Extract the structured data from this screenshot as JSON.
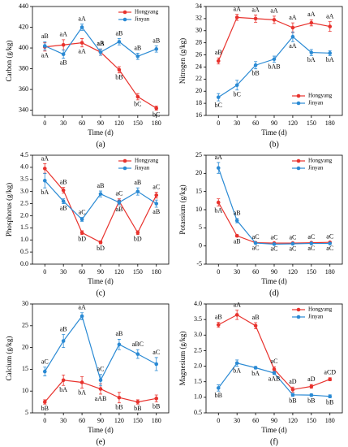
{
  "chart_data": [
    {
      "type": "line",
      "ylabel": "Carbon (g/kg)",
      "xlabel": "Time (d)",
      "caption": "(a)",
      "x": [
        0,
        30,
        60,
        90,
        120,
        150,
        180
      ],
      "xlim": [
        -20,
        200
      ],
      "xticks": [
        0,
        30,
        60,
        90,
        120,
        150,
        180
      ],
      "ylim": [
        335,
        440
      ],
      "yticks": [
        340,
        360,
        380,
        400,
        420,
        440
      ],
      "legend": "upper right",
      "series": [
        {
          "name": "Hongyang",
          "color": "#e8322d",
          "values": [
            401,
            403,
            405,
            396,
            379,
            353,
            342
          ],
          "errors": [
            4,
            5,
            4,
            3,
            3,
            3,
            2
          ],
          "labels": [
            "aA",
            "aA",
            "aA",
            "aA",
            "bB",
            "bC",
            "bC"
          ]
        },
        {
          "name": "Jinyan",
          "color": "#2a8ad4",
          "values": [
            402,
            394,
            420,
            396,
            406,
            392,
            399
          ],
          "errors": [
            4,
            4,
            3,
            3,
            3,
            3,
            3
          ],
          "labels": [
            "aB",
            "aB",
            "aA",
            "aB",
            "aB",
            "aB",
            "aB"
          ]
        }
      ]
    },
    {
      "type": "line",
      "ylabel": "Nitrogen (g/kg)",
      "xlabel": "Time (d)",
      "caption": "(b)",
      "x": [
        0,
        30,
        60,
        90,
        120,
        150,
        180
      ],
      "xlim": [
        -20,
        200
      ],
      "xticks": [
        0,
        30,
        60,
        90,
        120,
        150,
        180
      ],
      "ylim": [
        16,
        34
      ],
      "yticks": [
        16,
        18,
        20,
        22,
        24,
        26,
        28,
        30,
        32,
        34
      ],
      "legend": "lower right",
      "series": [
        {
          "name": "Hongyang",
          "color": "#e8322d",
          "values": [
            25,
            32.2,
            32,
            31.8,
            30.5,
            31.3,
            30.7
          ],
          "errors": [
            0.5,
            0.5,
            0.6,
            0.6,
            0.8,
            0.5,
            0.8
          ],
          "labels": [
            "aB",
            "aA",
            "aA",
            "aA",
            "aA",
            "aA",
            "aA"
          ]
        },
        {
          "name": "Jinyan",
          "color": "#2a8ad4",
          "values": [
            19,
            21,
            24.3,
            25.3,
            29,
            26.4,
            26.3
          ],
          "errors": [
            0.6,
            0.8,
            0.6,
            0.5,
            0.8,
            0.5,
            0.4
          ],
          "labels": [
            "bC",
            "bC",
            "bB",
            "bAB",
            "aA",
            "bA",
            "bA"
          ]
        }
      ]
    },
    {
      "type": "line",
      "ylabel": "Phosphorus (g/kg)",
      "xlabel": "Time (d)",
      "caption": "(c)",
      "x": [
        0,
        30,
        60,
        90,
        120,
        150,
        180
      ],
      "xlim": [
        -20,
        200
      ],
      "xticks": [
        0,
        30,
        60,
        90,
        120,
        150,
        180
      ],
      "ylim": [
        0,
        4.5
      ],
      "yticks": [
        {
          "value": 0,
          "label": "0.0"
        },
        0.5,
        {
          "value": 1,
          "label": "1.0"
        },
        1.5,
        {
          "value": 2,
          "label": "2.0"
        },
        2.5,
        {
          "value": 3,
          "label": "3.0"
        },
        3.5,
        {
          "value": 4,
          "label": "4.0"
        },
        4.5
      ],
      "legend": "upper right",
      "series": [
        {
          "name": "Hongyang",
          "color": "#e8322d",
          "values": [
            3.95,
            3.05,
            1.3,
            0.9,
            2.6,
            1.3,
            2.85
          ],
          "errors": [
            0.2,
            0.12,
            0.08,
            0.06,
            0.1,
            0.08,
            0.12
          ],
          "labels": [
            "aA",
            "aB",
            "bD",
            "bD",
            "aC",
            "bD",
            "aC"
          ]
        },
        {
          "name": "Jinyan",
          "color": "#2a8ad4",
          "values": [
            3.45,
            2.6,
            1.85,
            2.9,
            2.55,
            3.0,
            2.5
          ],
          "errors": [
            0.3,
            0.1,
            0.08,
            0.12,
            0.1,
            0.15,
            0.15
          ],
          "labels": [
            "bA",
            "aB",
            "aC",
            "aB",
            "aB",
            "aB",
            "aB"
          ]
        }
      ]
    },
    {
      "type": "line",
      "ylabel": "Potassium (g/kg)",
      "xlabel": "Time (d)",
      "caption": "(d)",
      "x": [
        0,
        30,
        60,
        90,
        120,
        150,
        180
      ],
      "xlim": [
        -20,
        200
      ],
      "xticks": [
        0,
        30,
        60,
        90,
        120,
        150,
        180
      ],
      "ylim": [
        -5,
        25
      ],
      "yticks": [
        -5,
        0,
        5,
        10,
        15,
        20,
        25
      ],
      "legend": "upper right",
      "series": [
        {
          "name": "Hongyang",
          "color": "#e8322d",
          "values": [
            12,
            2.8,
            0.9,
            0.8,
            0.8,
            0.9,
            1.0
          ],
          "errors": [
            1,
            0.3,
            0.1,
            0.1,
            0.1,
            0.1,
            0.1
          ],
          "labels": [
            "bA",
            "aB",
            "aC",
            "aC",
            "aC",
            "aC",
            "aC"
          ]
        },
        {
          "name": "Jinyan",
          "color": "#2a8ad4",
          "values": [
            21.5,
            7,
            0.8,
            0.5,
            0.6,
            0.7,
            0.7
          ],
          "errors": [
            1.5,
            0.6,
            0.1,
            0.1,
            0.1,
            0.1,
            0.1
          ],
          "labels": [
            "aA",
            "aB",
            "aC",
            "aC",
            "aC",
            "aC",
            "aC"
          ]
        }
      ]
    },
    {
      "type": "line",
      "ylabel": "Calcium (g/kg)",
      "xlabel": "Time (d)",
      "caption": "(e)",
      "x": [
        0,
        30,
        60,
        90,
        120,
        150,
        180
      ],
      "xlim": [
        -20,
        200
      ],
      "xticks": [
        0,
        30,
        60,
        90,
        120,
        150,
        180
      ],
      "ylim": [
        5,
        30
      ],
      "yticks": [
        5,
        10,
        15,
        20,
        25,
        30
      ],
      "legend": false,
      "series": [
        {
          "name": "Hongyang",
          "color": "#e8322d",
          "values": [
            7.5,
            12.5,
            12,
            10.5,
            8.5,
            7.5,
            8.3
          ],
          "errors": [
            0.5,
            1.2,
            1.3,
            1.2,
            1.2,
            0.5,
            0.8
          ],
          "labels": [
            "bB",
            "bA",
            "bA",
            "aAB",
            "bB",
            "bB",
            "bB"
          ]
        },
        {
          "name": "Jinyan",
          "color": "#2a8ad4",
          "values": [
            14.5,
            21.5,
            27.2,
            12.5,
            20.7,
            18.5,
            16.2
          ],
          "errors": [
            1,
            1.5,
            0.8,
            1.3,
            1.2,
            1.0,
            1.5
          ],
          "labels": [
            "aC",
            "aB",
            "aA",
            "aC",
            "aB",
            "aBC",
            "aC"
          ]
        }
      ]
    },
    {
      "type": "line",
      "ylabel": "Magnesium (g/kg)",
      "xlabel": "Time (d)",
      "caption": "(f)",
      "x": [
        0,
        30,
        60,
        90,
        120,
        150,
        180
      ],
      "xlim": [
        -20,
        200
      ],
      "xticks": [
        0,
        30,
        60,
        90,
        120,
        150,
        180
      ],
      "ylim": [
        0.5,
        4.0
      ],
      "yticks": [
        0.5,
        {
          "value": 1,
          "label": "1.0"
        },
        1.5,
        {
          "value": 2,
          "label": "2.0"
        },
        2.5,
        {
          "value": 3,
          "label": "3.0"
        },
        3.5,
        {
          "value": 4,
          "label": "4.0"
        }
      ],
      "legend": "upper right",
      "series": [
        {
          "name": "Hongyang",
          "color": "#e8322d",
          "values": [
            3.33,
            3.65,
            3.3,
            1.9,
            1.25,
            1.35,
            1.58
          ],
          "errors": [
            0.08,
            0.15,
            0.1,
            0.08,
            0.08,
            0.06,
            0.05
          ],
          "labels": [
            "aB",
            "aA",
            "aB",
            "aC",
            "aD",
            "aD",
            "aCD"
          ]
        },
        {
          "name": "Jinyan",
          "color": "#2a8ad4",
          "values": [
            1.3,
            2.1,
            1.95,
            1.78,
            1.08,
            1.07,
            1.03
          ],
          "errors": [
            0.1,
            0.1,
            0.04,
            0.05,
            0.05,
            0.04,
            0.05
          ],
          "labels": [
            "bB",
            "bA",
            "bA",
            "aAB",
            "bB",
            "bB",
            "bB"
          ]
        }
      ]
    }
  ]
}
